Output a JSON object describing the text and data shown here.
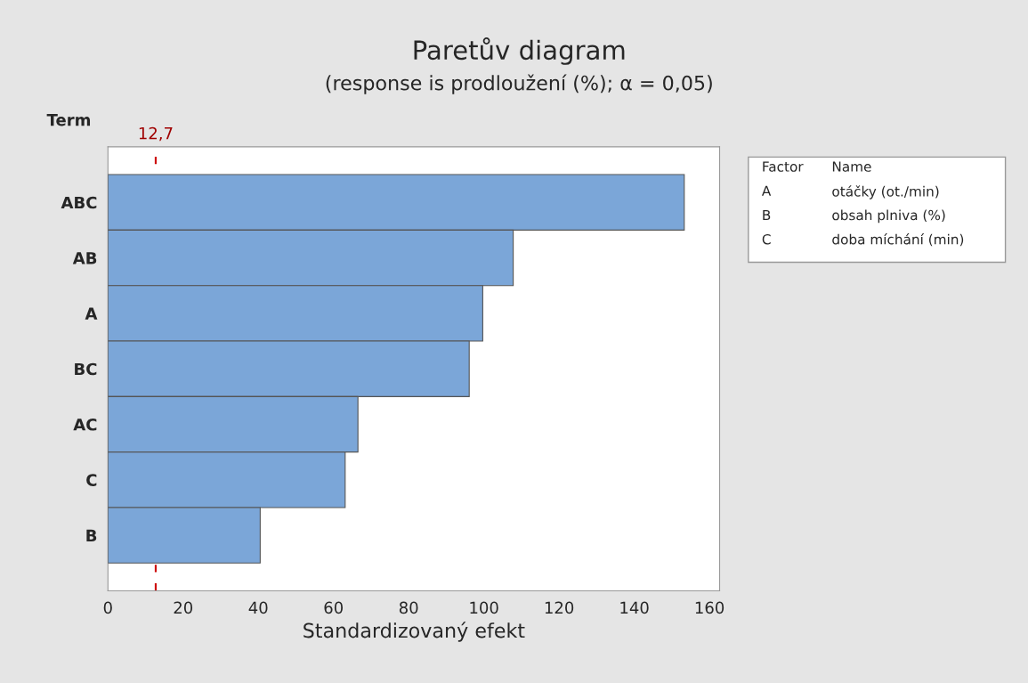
{
  "chart_data": {
    "type": "bar",
    "orientation": "horizontal",
    "title": "Paretův diagram",
    "subtitle": "(response is prodloužení (%); α = 0,05)",
    "xlabel": "Standardizovaný efekt",
    "ylabel": "Term",
    "categories": [
      "ABC",
      "AB",
      "A",
      "BC",
      "AC",
      "C",
      "B"
    ],
    "values": [
      153.3,
      107.8,
      99.7,
      96.1,
      66.5,
      63.1,
      40.5
    ],
    "color": "#7ba6d8",
    "xlim": [
      0,
      162.7
    ],
    "xticks": [
      0,
      20,
      40,
      60,
      80,
      100,
      120,
      140,
      160
    ],
    "ref_lines": [
      {
        "axis": "x",
        "value": 12.7,
        "label": "12,7",
        "color": "#cc0000",
        "line_style": "dashed"
      }
    ],
    "annotations": [
      "Factor",
      "Name",
      "A",
      "otáčky (ot./min)",
      "B",
      "obsah plniva (%)",
      "C",
      "doba míchání (min)"
    ],
    "grid": false
  }
}
